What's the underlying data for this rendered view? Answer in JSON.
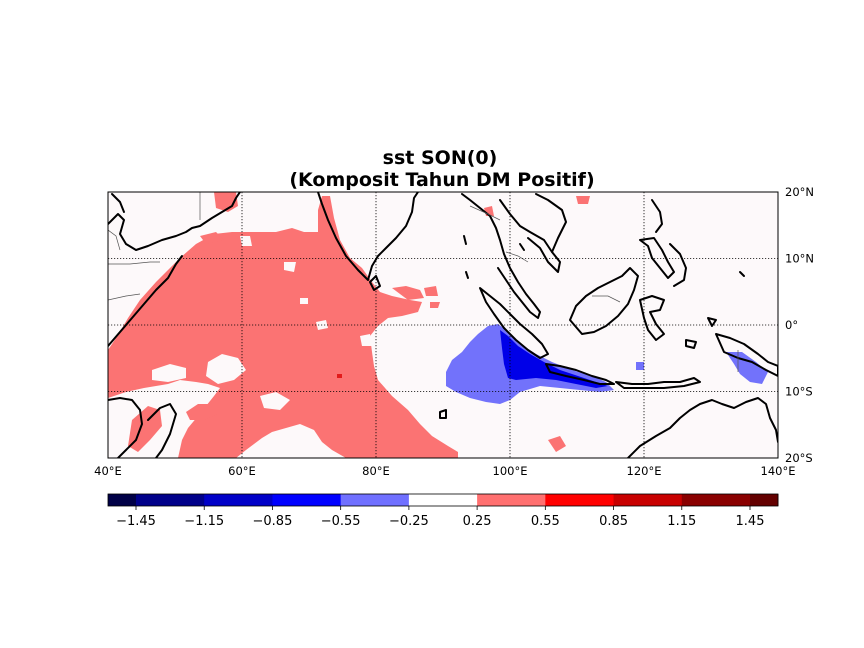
{
  "title": {
    "line1": "sst SON(0)",
    "line2": "(Komposit Tahun DM Positif)"
  },
  "map": {
    "projection": "cylindrical",
    "lon_range": [
      40,
      140
    ],
    "lat_range": [
      -20,
      20
    ],
    "lon_ticks": [
      "40°E",
      "60°E",
      "80°E",
      "100°E",
      "120°E",
      "140°E"
    ],
    "lat_ticks": [
      "20°N",
      "10°N",
      "0°",
      "10°S",
      "20°S"
    ],
    "gridlines": "dotted",
    "background_color": "#fdf9fa"
  },
  "field": {
    "variable": "sst",
    "season": "SON(0)",
    "positive_anomaly_region": "western & central Indian Ocean",
    "negative_anomaly_region": "eastern Indian Ocean off Sumatra & Java",
    "positive_color": "#fb7373",
    "weak_negative_color": "#7272fb",
    "strong_negative_color": "#0000e8"
  },
  "colorbar": {
    "colors": [
      "#000047",
      "#00008a",
      "#0000c8",
      "#0000ff",
      "#7070ff",
      "#ffffff",
      "#ff7070",
      "#ff0000",
      "#c80000",
      "#8a0000",
      "#640000"
    ],
    "tick_labels": [
      "−1.45",
      "−1.15",
      "−0.85",
      "−0.55",
      "−0.25",
      "0.25",
      "0.55",
      "0.85",
      "1.15",
      "1.45"
    ]
  }
}
